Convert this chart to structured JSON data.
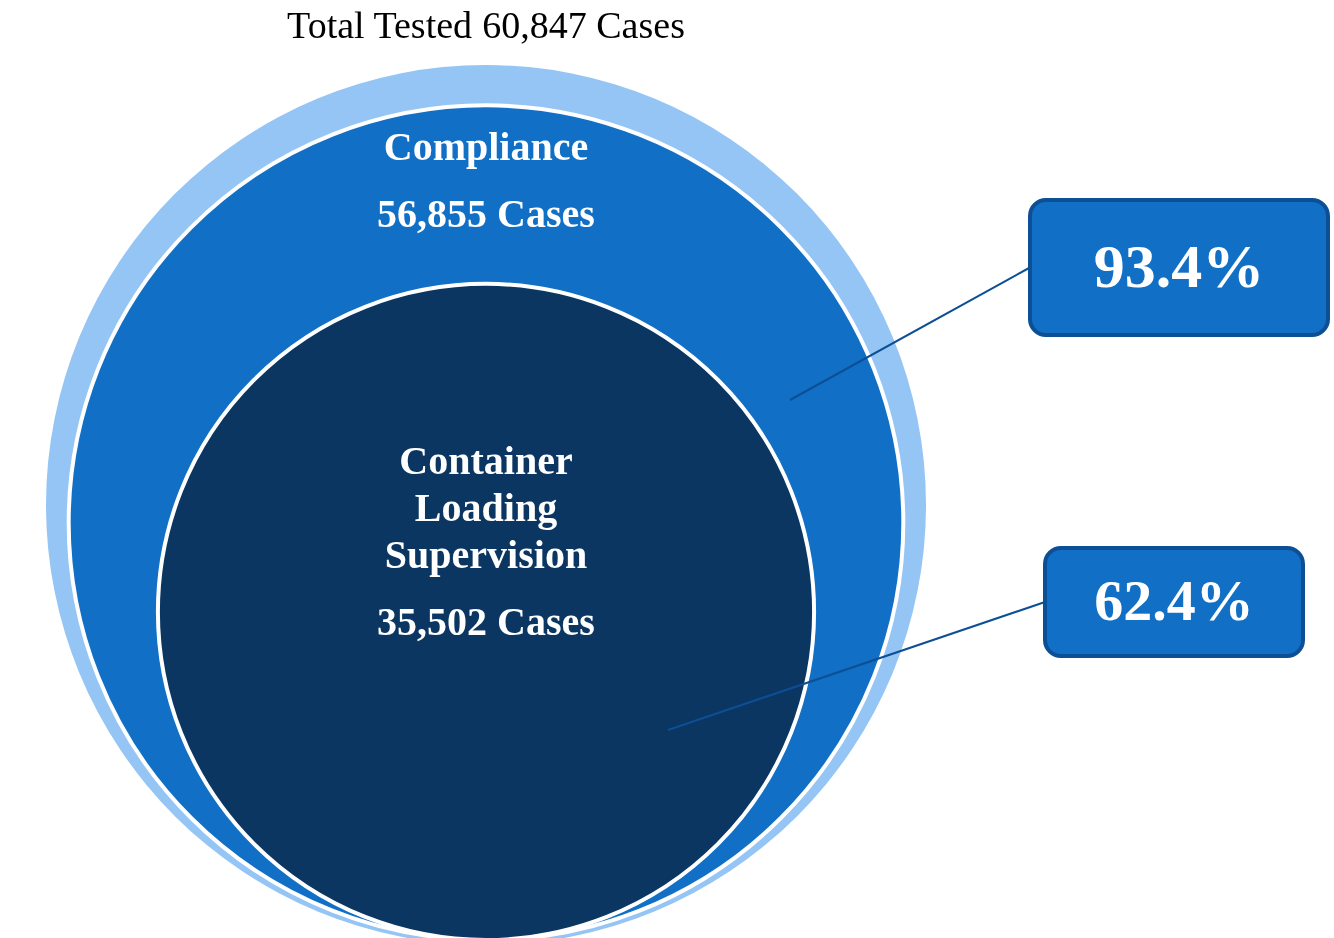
{
  "chart_data": {
    "type": "other",
    "categories": [
      "Total Tested",
      "Compliance",
      "Container Loading Supervision"
    ],
    "values": [
      60847,
      56855,
      35502
    ],
    "value_labels": [
      "60,847 Cases",
      "56,855 Cases",
      "35,502 Cases"
    ],
    "colors": [
      "#94c5f5",
      "#116fc6",
      "#0a3661"
    ],
    "annotations": [
      "93.4%",
      "62.4%"
    ]
  }
}
